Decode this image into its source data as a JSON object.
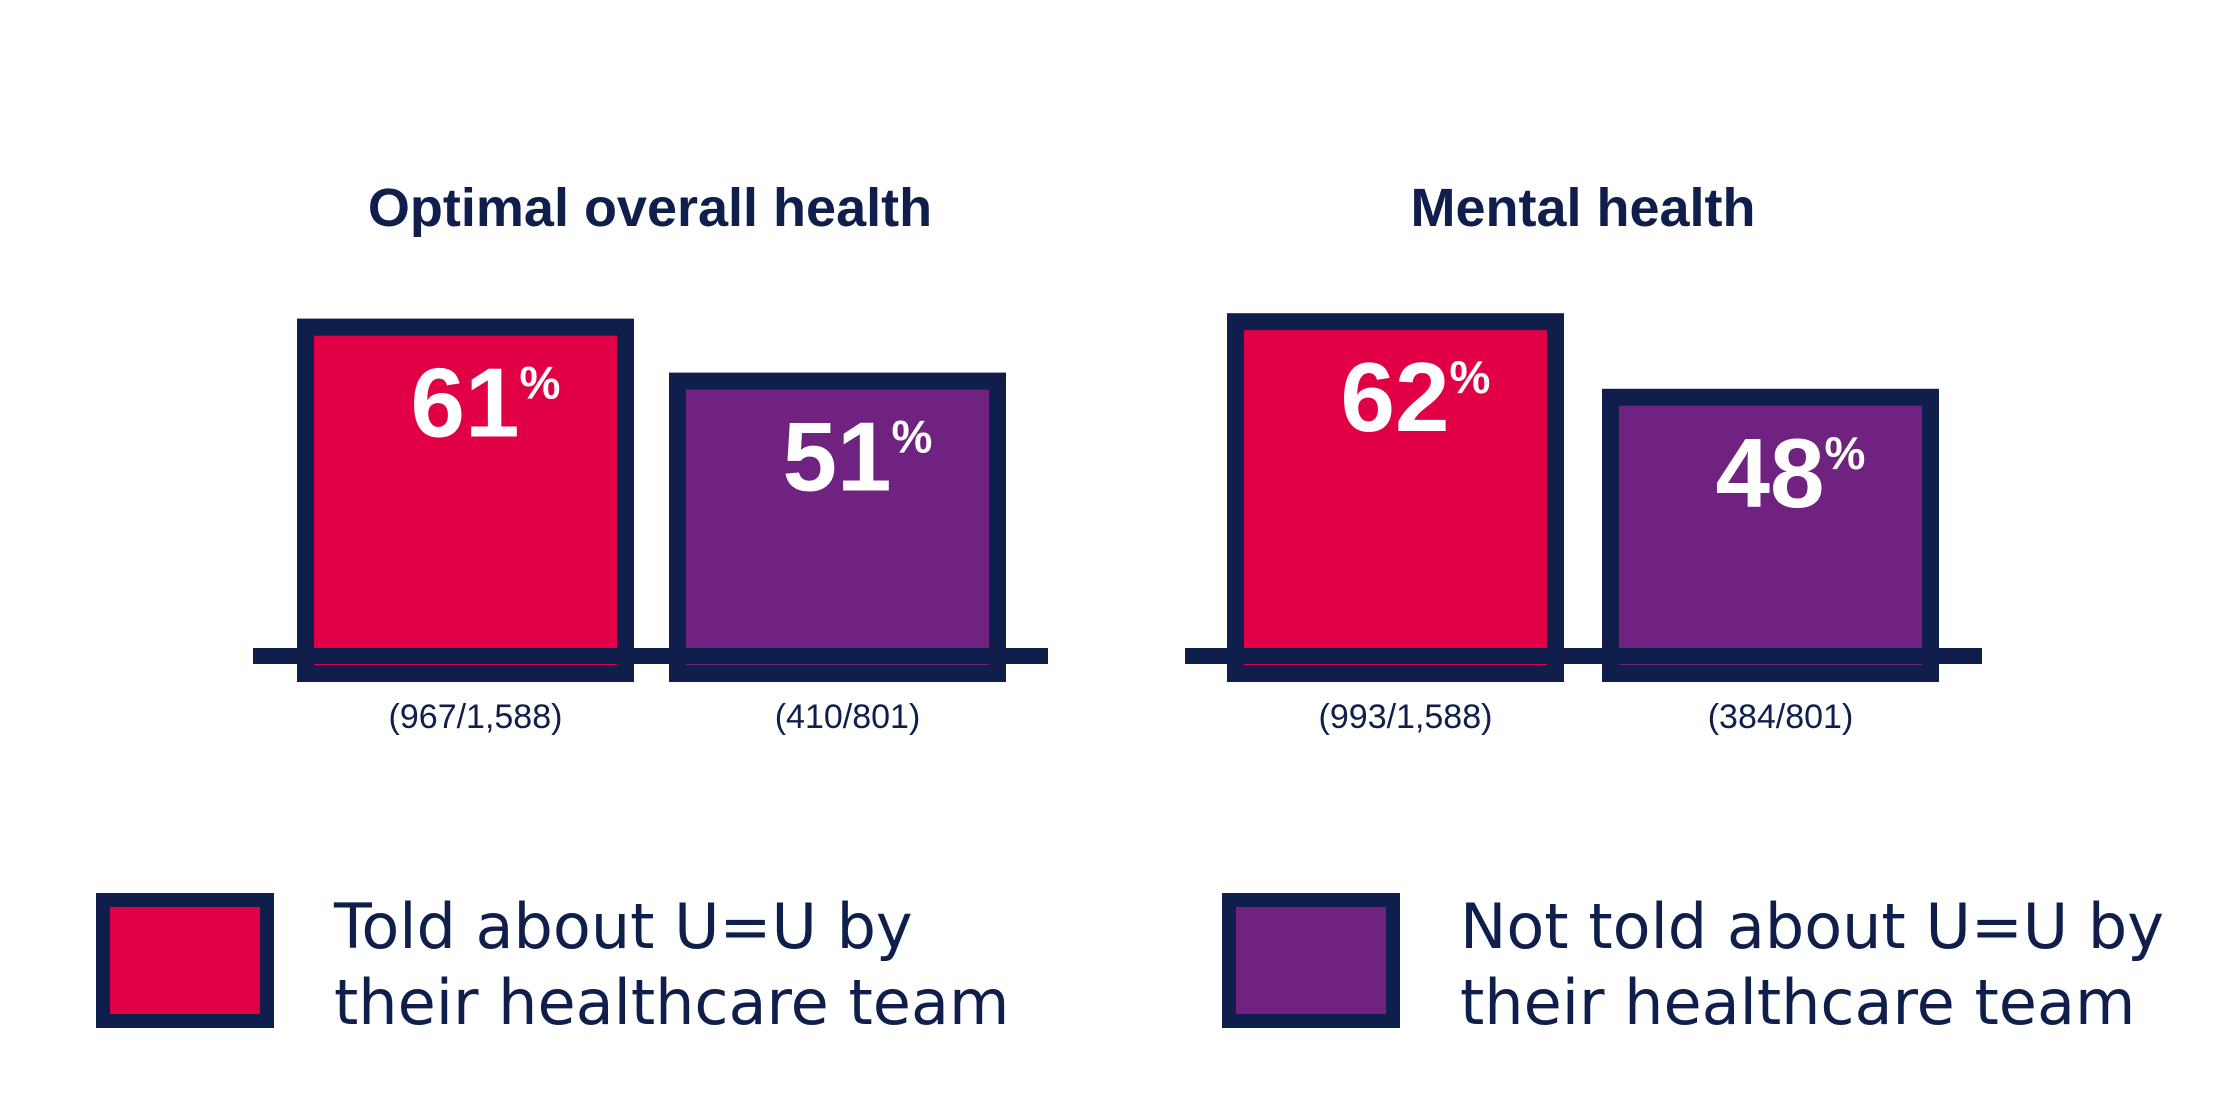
{
  "chart_data": [
    {
      "type": "bar",
      "title": "Optimal overall health",
      "categories": [
        "Told about U=U by their healthcare team",
        "Not told about U=U by their healthcare team"
      ],
      "values": [
        61,
        51
      ],
      "value_labels": [
        "61",
        "51"
      ],
      "unit": "%",
      "counts": [
        "(967/1,588)",
        "(410/801)"
      ],
      "colors": [
        "#e10045",
        "#6f2280"
      ],
      "ylim": [
        0,
        100
      ]
    },
    {
      "type": "bar",
      "title": "Mental health",
      "categories": [
        "Told about U=U by their healthcare team",
        "Not told about U=U by their healthcare team"
      ],
      "values": [
        62,
        48
      ],
      "value_labels": [
        "62",
        "48"
      ],
      "unit": "%",
      "counts": [
        "(993/1,588)",
        "(384/801)"
      ],
      "colors": [
        "#e10045",
        "#6f2280"
      ],
      "ylim": [
        0,
        100
      ]
    }
  ],
  "legend": [
    {
      "line1": "Told about U=U by",
      "line2": "their healthcare team",
      "color": "#e10045"
    },
    {
      "line1": "Not told about U=U by",
      "line2": "their healthcare team",
      "color": "#6f2280"
    }
  ],
  "colors": {
    "outline": "#0f1e4b",
    "text_on_bar": "#ffffff"
  }
}
